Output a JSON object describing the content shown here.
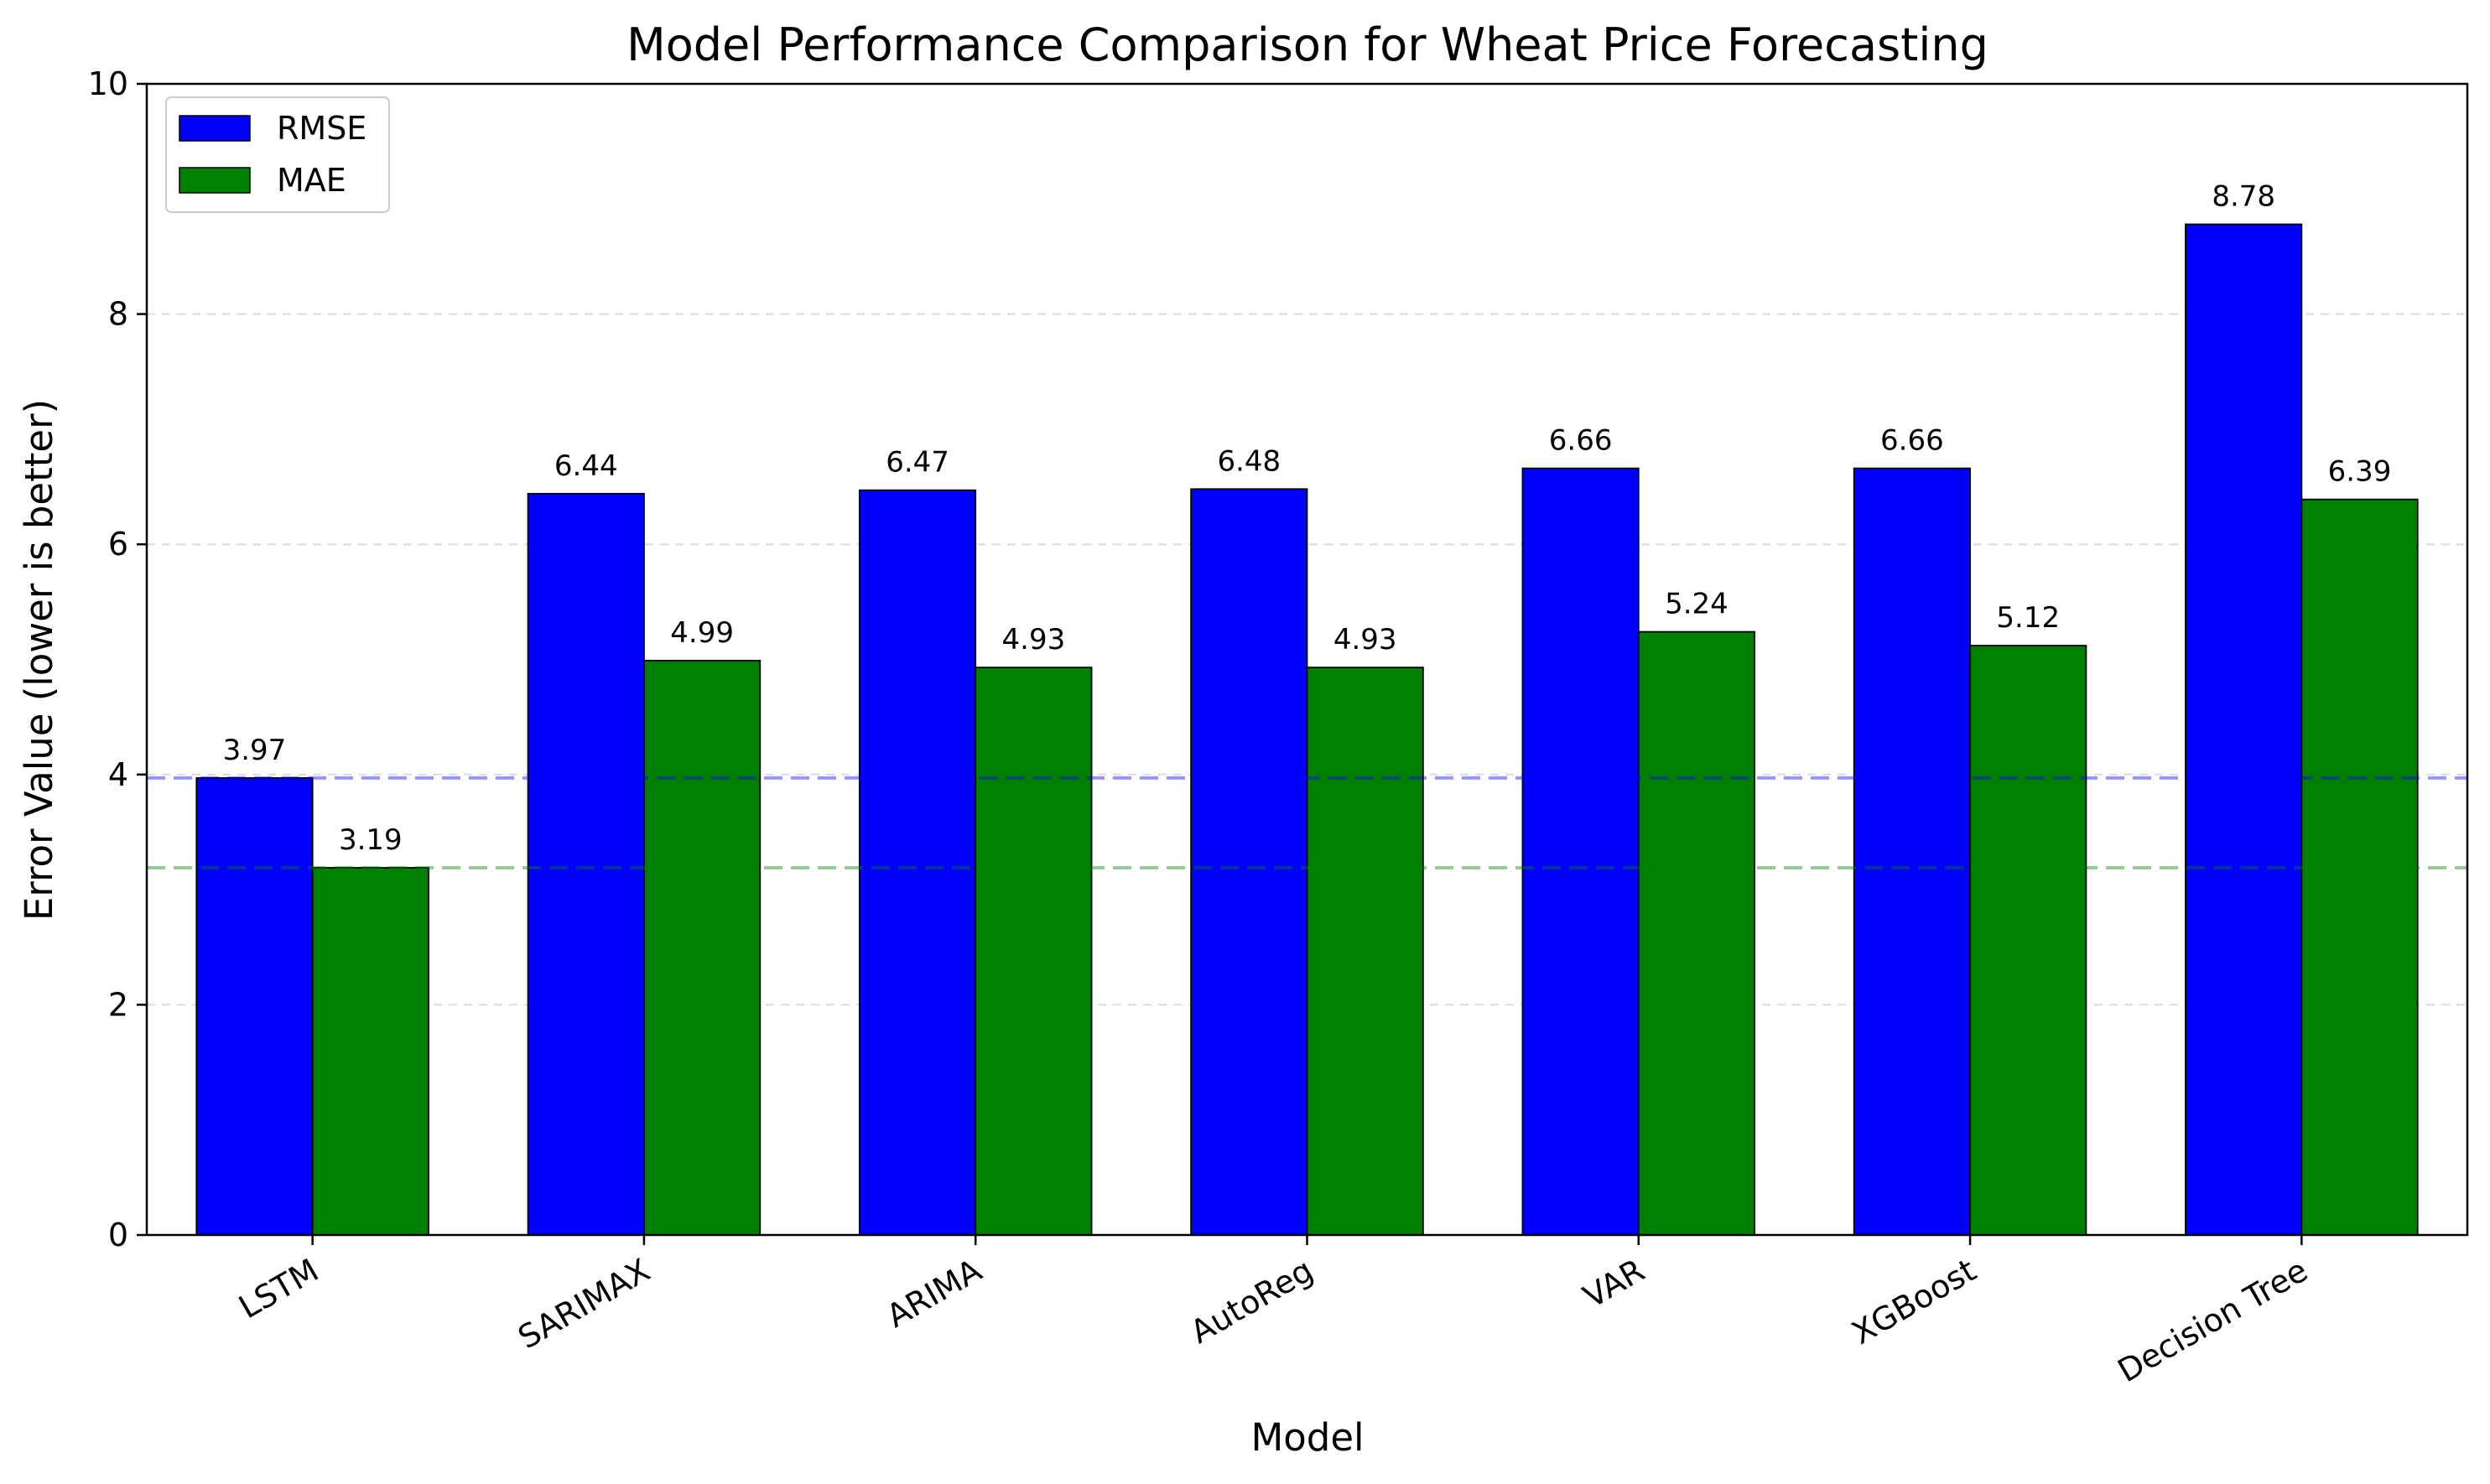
{
  "chart_data": {
    "type": "bar",
    "title": "Model Performance Comparison for Wheat Price Forecasting",
    "xlabel": "Model",
    "ylabel": "Error Value (lower is better)",
    "ylim": [
      0,
      10
    ],
    "yticks": [
      "0",
      "2",
      "4",
      "6",
      "8",
      "10"
    ],
    "categories": [
      "LSTM",
      "SARIMAX",
      "ARIMA",
      "AutoReg",
      "VAR",
      "XGBoost",
      "Decision Tree"
    ],
    "series": [
      {
        "name": "RMSE",
        "color": "#0000ff",
        "values": [
          3.97,
          6.44,
          6.47,
          6.48,
          6.66,
          6.66,
          8.78
        ],
        "labels": [
          "3.97",
          "6.44",
          "6.47",
          "6.48",
          "6.66",
          "6.66",
          "8.78"
        ]
      },
      {
        "name": "MAE",
        "color": "#008000",
        "values": [
          3.19,
          4.99,
          4.93,
          4.93,
          5.24,
          5.12,
          6.39
        ],
        "labels": [
          "3.19",
          "4.99",
          "4.93",
          "4.93",
          "5.24",
          "5.12",
          "6.39"
        ]
      }
    ],
    "reference_lines": [
      {
        "series": "RMSE",
        "value": 3.97,
        "color": "#0000ff",
        "style": "dashed"
      },
      {
        "series": "MAE",
        "value": 3.19,
        "color": "#008000",
        "style": "dashed"
      }
    ],
    "grid": "y-dashed",
    "legend_position": "top-left"
  }
}
